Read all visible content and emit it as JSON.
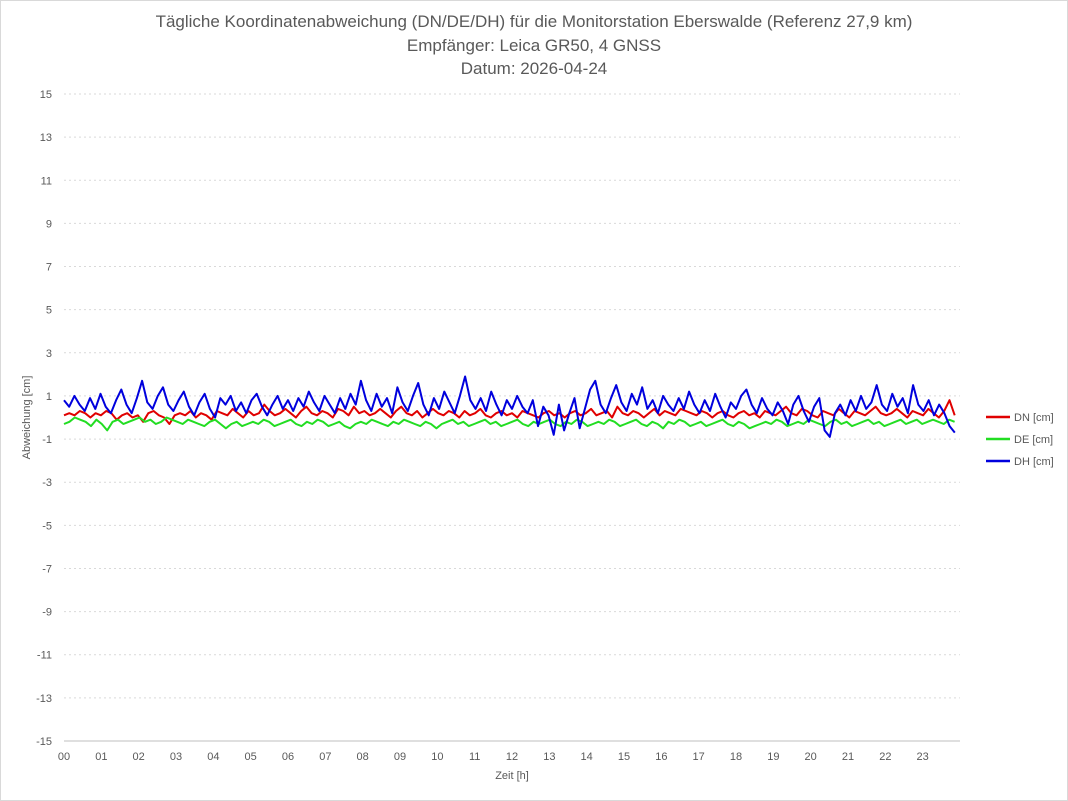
{
  "chart_data": {
    "type": "line",
    "title": "Tägliche Koordinatenabweichung (DN/DE/DH) für die Monitorstation Eberswalde (Referenz 27,9 km)",
    "subtitle": "Empfänger: Leica GR50, 4 GNSS",
    "subtitle2": "Datum: 2026-04-24",
    "xlabel": "Zeit [h]",
    "ylabel": "Abweichung [cm]",
    "xlim": [
      0,
      24
    ],
    "ylim": [
      -15,
      15
    ],
    "x_ticks": [
      "00",
      "01",
      "02",
      "03",
      "04",
      "05",
      "06",
      "07",
      "08",
      "09",
      "10",
      "11",
      "12",
      "13",
      "14",
      "15",
      "16",
      "17",
      "18",
      "19",
      "20",
      "21",
      "22",
      "23"
    ],
    "y_ticks": [
      15,
      13,
      11,
      9,
      7,
      5,
      3,
      1,
      -1,
      -3,
      -5,
      -7,
      -9,
      -11,
      -13,
      -15
    ],
    "grid": true,
    "legend_position": "right",
    "series": [
      {
        "name": "DN [cm]",
        "color": "#e00000",
        "values": [
          0.1,
          0.2,
          0.1,
          0.3,
          0.2,
          0.0,
          0.2,
          0.1,
          0.3,
          0.2,
          -0.1,
          0.1,
          0.2,
          0.0,
          0.1,
          -0.2,
          0.2,
          0.3,
          0.1,
          0.0,
          -0.3,
          0.1,
          0.2,
          0.1,
          0.3,
          0.0,
          0.2,
          0.1,
          -0.1,
          0.3,
          0.2,
          0.1,
          0.4,
          0.2,
          0.0,
          0.3,
          0.1,
          0.2,
          0.6,
          0.3,
          0.1,
          0.2,
          0.4,
          0.2,
          0.0,
          0.3,
          0.5,
          0.2,
          0.1,
          0.3,
          0.2,
          0.0,
          0.4,
          0.3,
          0.1,
          0.5,
          0.2,
          0.3,
          0.1,
          0.2,
          0.4,
          0.2,
          0.0,
          0.3,
          0.5,
          0.2,
          0.1,
          0.3,
          0.0,
          0.2,
          0.4,
          0.2,
          0.1,
          0.3,
          0.2,
          0.0,
          0.3,
          0.1,
          0.2,
          0.4,
          0.1,
          0.0,
          0.2,
          0.3,
          0.1,
          0.2,
          0.0,
          0.3,
          0.2,
          0.1,
          0.0,
          0.2,
          0.3,
          0.1,
          0.2,
          0.0,
          0.2,
          0.3,
          0.1,
          0.2,
          0.4,
          0.1,
          0.2,
          0.3,
          0.0,
          0.5,
          0.2,
          0.1,
          0.3,
          0.2,
          0.0,
          0.2,
          0.4,
          0.1,
          0.3,
          0.2,
          0.1,
          0.4,
          0.3,
          0.2,
          0.1,
          0.3,
          0.2,
          0.0,
          0.2,
          0.3,
          0.1,
          0.0,
          0.2,
          0.3,
          0.1,
          0.2,
          0.0,
          0.3,
          0.2,
          0.1,
          0.3,
          0.5,
          0.2,
          0.1,
          0.4,
          0.3,
          0.1,
          0.0,
          0.3,
          0.2,
          0.1,
          0.4,
          0.2,
          0.0,
          0.3,
          0.2,
          0.1,
          0.3,
          0.5,
          0.2,
          0.1,
          0.2,
          0.4,
          0.2,
          0.0,
          0.3,
          0.2,
          0.1,
          0.4,
          0.2,
          0.0,
          0.3,
          0.8,
          0.1
        ]
      },
      {
        "name": "DE [cm]",
        "color": "#22dd22",
        "values": [
          -0.3,
          -0.2,
          0.0,
          -0.1,
          -0.2,
          -0.4,
          -0.1,
          -0.3,
          -0.6,
          -0.2,
          -0.1,
          -0.3,
          -0.2,
          -0.1,
          0.0,
          -0.2,
          -0.1,
          -0.3,
          -0.2,
          0.0,
          -0.1,
          -0.2,
          -0.3,
          -0.1,
          -0.2,
          -0.3,
          -0.4,
          -0.2,
          -0.1,
          -0.3,
          -0.5,
          -0.3,
          -0.2,
          -0.4,
          -0.3,
          -0.2,
          -0.3,
          -0.1,
          -0.2,
          -0.4,
          -0.3,
          -0.2,
          -0.1,
          -0.3,
          -0.4,
          -0.2,
          -0.3,
          -0.1,
          -0.2,
          -0.4,
          -0.3,
          -0.2,
          -0.4,
          -0.5,
          -0.3,
          -0.2,
          -0.3,
          -0.1,
          -0.2,
          -0.3,
          -0.4,
          -0.2,
          -0.3,
          -0.1,
          -0.2,
          -0.3,
          -0.4,
          -0.2,
          -0.3,
          -0.5,
          -0.3,
          -0.2,
          -0.1,
          -0.3,
          -0.2,
          -0.4,
          -0.3,
          -0.2,
          -0.1,
          -0.3,
          -0.2,
          -0.4,
          -0.3,
          -0.2,
          -0.1,
          -0.3,
          -0.4,
          -0.2,
          -0.3,
          -0.2,
          -0.1,
          -0.3,
          -0.4,
          -0.2,
          -0.3,
          -0.1,
          -0.2,
          -0.4,
          -0.3,
          -0.2,
          -0.3,
          -0.1,
          -0.2,
          -0.4,
          -0.3,
          -0.2,
          -0.1,
          -0.3,
          -0.4,
          -0.2,
          -0.3,
          -0.5,
          -0.2,
          -0.3,
          -0.1,
          -0.2,
          -0.4,
          -0.3,
          -0.2,
          -0.4,
          -0.3,
          -0.2,
          -0.1,
          -0.3,
          -0.4,
          -0.2,
          -0.3,
          -0.5,
          -0.4,
          -0.3,
          -0.2,
          -0.3,
          -0.1,
          -0.2,
          -0.4,
          -0.3,
          -0.2,
          -0.3,
          -0.1,
          -0.2,
          -0.3,
          -0.4,
          -0.2,
          -0.1,
          -0.3,
          -0.2,
          -0.4,
          -0.3,
          -0.2,
          -0.1,
          -0.3,
          -0.2,
          -0.4,
          -0.3,
          -0.2,
          -0.1,
          -0.3,
          -0.2,
          -0.1,
          -0.3,
          -0.2,
          -0.1,
          -0.2,
          -0.3,
          -0.1,
          -0.2
        ]
      },
      {
        "name": "DH [cm]",
        "color": "#0000dd",
        "values": [
          0.8,
          0.5,
          1.0,
          0.6,
          0.3,
          0.9,
          0.4,
          1.1,
          0.5,
          0.2,
          0.8,
          1.3,
          0.6,
          0.2,
          0.9,
          1.7,
          0.7,
          0.4,
          1.0,
          1.4,
          0.6,
          0.3,
          0.8,
          1.2,
          0.5,
          0.1,
          0.7,
          1.1,
          0.4,
          0.0,
          0.9,
          0.6,
          1.0,
          0.3,
          0.7,
          0.2,
          0.8,
          1.1,
          0.5,
          0.1,
          0.6,
          1.0,
          0.4,
          0.8,
          0.3,
          0.9,
          0.5,
          1.2,
          0.7,
          0.3,
          1.0,
          0.6,
          0.2,
          0.9,
          0.4,
          1.1,
          0.6,
          1.7,
          0.8,
          0.3,
          1.1,
          0.5,
          0.9,
          0.2,
          1.4,
          0.7,
          0.3,
          1.0,
          1.6,
          0.6,
          0.1,
          0.9,
          0.4,
          1.2,
          0.7,
          0.2,
          1.0,
          1.9,
          0.8,
          0.4,
          0.9,
          0.3,
          1.2,
          0.6,
          0.1,
          0.8,
          0.4,
          1.0,
          0.5,
          0.2,
          0.8,
          -0.4,
          0.5,
          0.1,
          -0.8,
          0.6,
          -0.6,
          0.2,
          0.9,
          -0.5,
          0.4,
          1.3,
          1.7,
          0.6,
          0.2,
          0.9,
          1.5,
          0.7,
          0.3,
          1.1,
          0.6,
          1.4,
          0.4,
          0.8,
          0.2,
          1.0,
          0.6,
          0.3,
          0.9,
          0.4,
          1.2,
          0.6,
          0.2,
          0.8,
          0.3,
          1.1,
          0.5,
          0.0,
          0.7,
          0.4,
          1.0,
          1.3,
          0.6,
          0.2,
          0.9,
          0.4,
          0.1,
          0.7,
          0.3,
          -0.3,
          0.6,
          1.0,
          0.3,
          -0.2,
          0.5,
          0.9,
          -0.6,
          -0.9,
          0.2,
          0.6,
          0.1,
          0.8,
          0.3,
          1.0,
          0.4,
          0.7,
          1.5,
          0.6,
          0.3,
          1.1,
          0.5,
          0.9,
          0.2,
          1.5,
          0.6,
          0.3,
          0.8,
          0.1,
          0.6,
          0.2,
          -0.4,
          -0.7
        ]
      }
    ]
  }
}
